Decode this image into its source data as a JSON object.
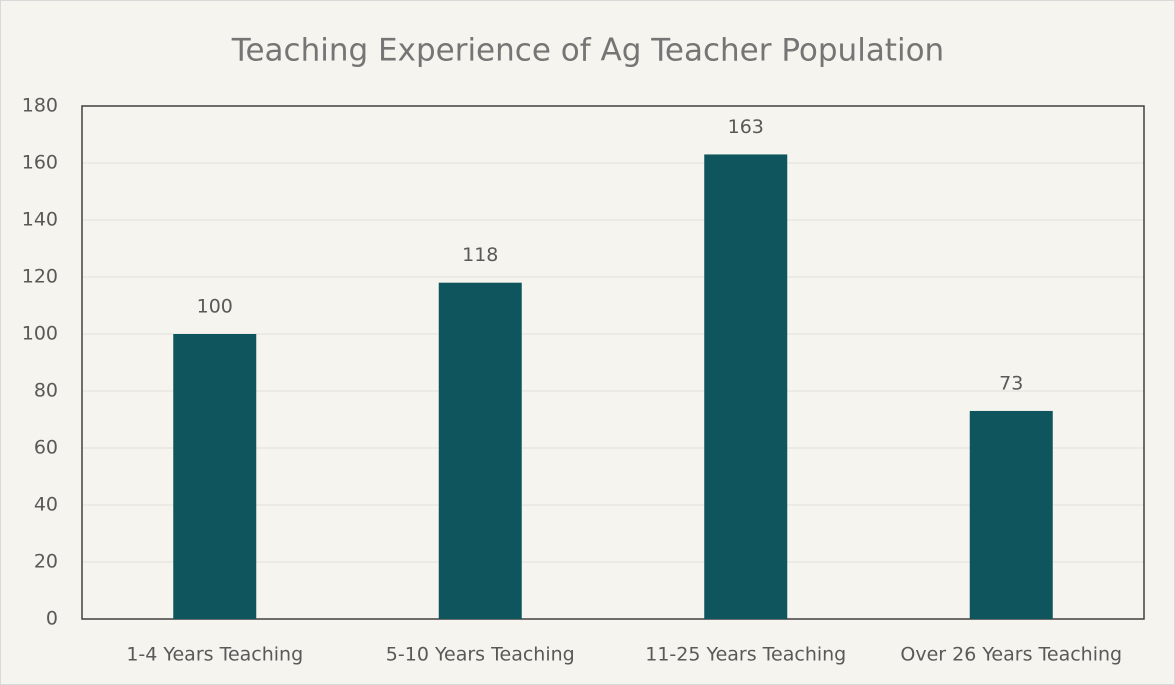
{
  "chart_data": {
    "type": "bar",
    "title": "Teaching Experience of Ag Teacher Population",
    "categories": [
      "1-4 Years Teaching",
      "5-10 Years Teaching",
      "11-25 Years Teaching",
      "Over 26 Years Teaching"
    ],
    "values": [
      100,
      118,
      163,
      73
    ],
    "color": "#0e555e",
    "ylim": [
      0,
      180
    ],
    "yticks": [
      0,
      20,
      40,
      60,
      80,
      100,
      120,
      140,
      160,
      180
    ],
    "grid": true,
    "data_labels": true
  }
}
